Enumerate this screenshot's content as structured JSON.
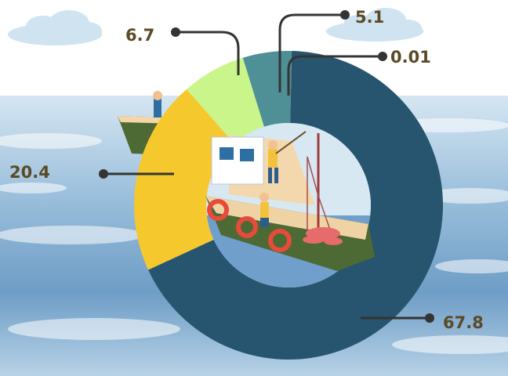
{
  "chart_data": {
    "type": "donut",
    "title": "",
    "values": [
      67.8,
      20.4,
      6.7,
      5.1,
      0.01
    ],
    "labels": [
      "67.8",
      "20.4",
      "6.7",
      "5.1",
      "0.01"
    ],
    "colors": [
      "#27546e",
      "#f5c82e",
      "#c9f58a",
      "#4f8f96",
      "#ee9a82"
    ]
  },
  "theme": {
    "sky": "#ffffff",
    "sea_light": "#cde0ee",
    "sea_mid": "#8eb7d5",
    "sea_dark": "#3f73a6",
    "leader_color": "#343434",
    "label_color": "#5b4a26"
  },
  "illustration": {
    "background": "ocean-with-clouds",
    "center": "fishing-boat-with-fishermen"
  }
}
